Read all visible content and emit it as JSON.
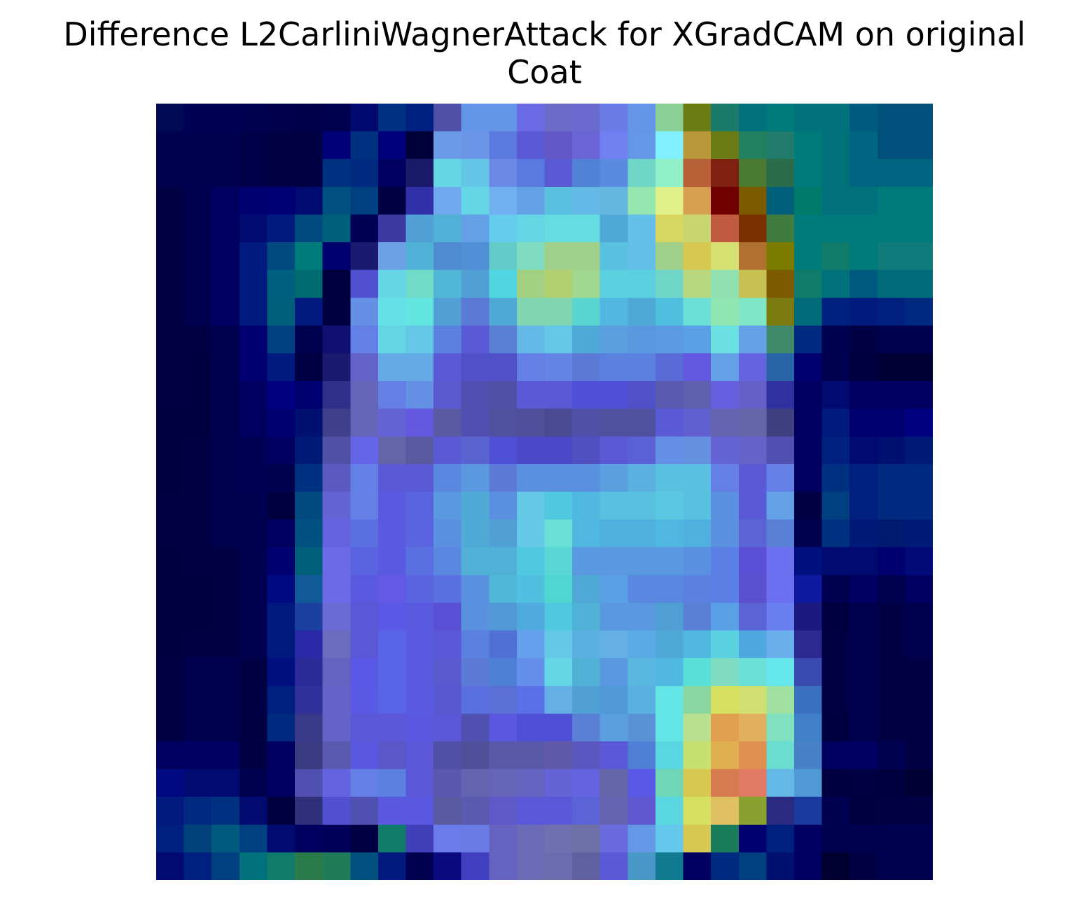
{
  "chart_data": {
    "type": "heatmap",
    "title_lines": [
      "Difference L2CarliniWagnerAttack for XGradCAM on original",
      "Coat"
    ],
    "xlabel": "",
    "ylabel": "",
    "axes_visible": false,
    "grid": false,
    "rows": 28,
    "cols": 28,
    "colormap": "jet blended over grayscale image",
    "pixel_colors": [
      [
        "#000a55",
        "#000055",
        "#000055",
        "#000050",
        "#00004d",
        "#00004a",
        "#000050",
        "#000a6e",
        "#003080",
        "#002080",
        "#5050a8",
        "#6495e6",
        "#6495e6",
        "#6b6be6",
        "#6b6bc8",
        "#6b6bcf",
        "#6b7be6",
        "#6495e6",
        "#8acf96",
        "#6b7b16",
        "#1a7b6b",
        "#00707b",
        "#007b7b",
        "#00707b",
        "#00707b",
        "#005a80",
        "#00507b",
        "#00507b"
      ],
      [
        "#000050",
        "#000050",
        "#000050",
        "#00004a",
        "#000045",
        "#000045",
        "#000078",
        "#003080",
        "#00007b",
        "#00003a",
        "#6b9ae6",
        "#6b95e6",
        "#5a7ae0",
        "#5a5ad6",
        "#6458c8",
        "#6b64d6",
        "#7080f0",
        "#6498e6",
        "#80f0ff",
        "#b89838",
        "#6b7b16",
        "#208060",
        "#207b6b",
        "#007b7b",
        "#00707b",
        "#006580",
        "#00507b",
        "#00507b"
      ],
      [
        "#000050",
        "#000050",
        "#000050",
        "#00004a",
        "#000045",
        "#000045",
        "#003080",
        "#002a80",
        "#000060",
        "#1a1a6b",
        "#64d6e6",
        "#64c6e6",
        "#6b8ae6",
        "#5a7ae0",
        "#5a5ad6",
        "#5082d6",
        "#5a8ae0",
        "#70d6c8",
        "#90f0c8",
        "#b86038",
        "#802010",
        "#4a7b30",
        "#2a6b4a",
        "#007b7b",
        "#00707b",
        "#006580",
        "#006580",
        "#006580"
      ],
      [
        "#000045",
        "#000050",
        "#000060",
        "#000070",
        "#000075",
        "#000a70",
        "#005080",
        "#004080",
        "#000045",
        "#3030a8",
        "#70a8f0",
        "#64d6e6",
        "#70b0f0",
        "#64a0e6",
        "#5ac0e0",
        "#64b8e6",
        "#64b8e0",
        "#96e6b0",
        "#e0f08a",
        "#d6a050",
        "#700000",
        "#7b5a00",
        "#00607b",
        "#007b6b",
        "#00707b",
        "#00707b",
        "#007b7b",
        "#007b7b"
      ],
      [
        "#000045",
        "#000050",
        "#000060",
        "#000a70",
        "#001a80",
        "#004a80",
        "#00607b",
        "#000055",
        "#3a3aa0",
        "#50a0d6",
        "#50b0d6",
        "#64a0e6",
        "#64ccec",
        "#64d6e6",
        "#64dce0",
        "#64dce0",
        "#50a8d6",
        "#64c0e6",
        "#d6d660",
        "#c8d670",
        "#c05a40",
        "#7b3000",
        "#407b40",
        "#007b7b",
        "#007b7b",
        "#007b7b",
        "#007b7b",
        "#007b7b"
      ],
      [
        "#000045",
        "#000050",
        "#000060",
        "#001a80",
        "#004a80",
        "#007b7b",
        "#000070",
        "#1a1a70",
        "#6ba0e6",
        "#50b0d6",
        "#508ad0",
        "#5090d6",
        "#64ccc8",
        "#80dcc0",
        "#a0d08a",
        "#a0d08a",
        "#5ac0e0",
        "#64c0e6",
        "#a0d08a",
        "#d6c850",
        "#d6e070",
        "#b07030",
        "#7b7b00",
        "#007b7b",
        "#107b6b",
        "#007b7b",
        "#107b7b",
        "#107b7b"
      ],
      [
        "#000045",
        "#000050",
        "#000060",
        "#001a80",
        "#006080",
        "#006b70",
        "#000040",
        "#5050d0",
        "#64d6e6",
        "#70dcc8",
        "#50b8d6",
        "#50a0d6",
        "#50d6e0",
        "#a0d080",
        "#b0d070",
        "#a0d890",
        "#5ad0e0",
        "#5ad0e0",
        "#70d6c8",
        "#b8d880",
        "#90e0b0",
        "#c8c050",
        "#7b5a00",
        "#107b6b",
        "#00707b",
        "#005a80",
        "#006b7b",
        "#006b7b"
      ],
      [
        "#000045",
        "#000050",
        "#000060",
        "#001a80",
        "#00607b",
        "#001a80",
        "#000040",
        "#6490e6",
        "#64e0e6",
        "#64e6e0",
        "#50a0d6",
        "#5a7ad6",
        "#50a8d6",
        "#80d6b0",
        "#80d6b0",
        "#5ad6d0",
        "#50b8e0",
        "#50a8d6",
        "#50c0e0",
        "#6be0d6",
        "#90e6b0",
        "#80e6c8",
        "#7b7b10",
        "#006b7b",
        "#002080",
        "#001a80",
        "#002080",
        "#002a80"
      ],
      [
        "#000045",
        "#000045",
        "#000050",
        "#000070",
        "#004080",
        "#000050",
        "#101070",
        "#6480e6",
        "#64d6e6",
        "#64c8e6",
        "#5a80e0",
        "#5a5ad6",
        "#5a80d6",
        "#64b8e6",
        "#64c8e6",
        "#50a8d6",
        "#5aa0e0",
        "#5a98e0",
        "#5a9ae0",
        "#5aa0e6",
        "#6be0e0",
        "#64a0e6",
        "#408a6b",
        "#002a80",
        "#000050",
        "#000045",
        "#000050",
        "#000050"
      ],
      [
        "#000045",
        "#000040",
        "#000050",
        "#000070",
        "#001a80",
        "#000045",
        "#1a1a70",
        "#6464c8",
        "#64aae6",
        "#64aae6",
        "#5a5ad6",
        "#5050c8",
        "#5050c8",
        "#6480e6",
        "#6484e6",
        "#5a7ad6",
        "#5a80e0",
        "#5a80e0",
        "#5a6ad6",
        "#6458e0",
        "#64a0e6",
        "#6464e0",
        "#2a64a8",
        "#000070",
        "#000050",
        "#000040",
        "#000035",
        "#000035"
      ],
      [
        "#000045",
        "#000040",
        "#000050",
        "#000060",
        "#000080",
        "#000070",
        "#30308a",
        "#6464b8",
        "#6480e6",
        "#6490e6",
        "#5a5ad0",
        "#5050b0",
        "#5050a8",
        "#5a5ad6",
        "#5a5ad6",
        "#5050d6",
        "#5050d6",
        "#5050c8",
        "#5a5ab0",
        "#6060b0",
        "#6460e0",
        "#6460c8",
        "#3030a0",
        "#000060",
        "#000a70",
        "#000060",
        "#000060",
        "#000060"
      ],
      [
        "#000040",
        "#000040",
        "#000050",
        "#000060",
        "#000070",
        "#001070",
        "#40408a",
        "#6464b8",
        "#6464d6",
        "#6458e0",
        "#5a5aa0",
        "#5050b0",
        "#5050a0",
        "#50509a",
        "#4a4a90",
        "#5050a8",
        "#5050a0",
        "#5050a0",
        "#5a5ad6",
        "#6060d0",
        "#6464b0",
        "#6464a8",
        "#404080",
        "#000060",
        "#001a80",
        "#000070",
        "#000070",
        "#000080"
      ],
      [
        "#000040",
        "#000045",
        "#000050",
        "#000055",
        "#000060",
        "#001a78",
        "#5050a8",
        "#6464e6",
        "#6464a8",
        "#5a5aa0",
        "#5a5ad6",
        "#5a64d0",
        "#5050d6",
        "#4a4ac8",
        "#4a4ac8",
        "#5050c0",
        "#5a5ad6",
        "#5a60d6",
        "#6490e6",
        "#6490e0",
        "#6464d6",
        "#6464c8",
        "#5050b0",
        "#000060",
        "#002080",
        "#000a70",
        "#001070",
        "#001a78"
      ],
      [
        "#000040",
        "#000045",
        "#000050",
        "#000055",
        "#000050",
        "#003080",
        "#5a5ac0",
        "#6480e6",
        "#5a5ad6",
        "#5a5ad6",
        "#5a88e0",
        "#5a98e0",
        "#5a7ad6",
        "#5a90e0",
        "#5a90e0",
        "#5a90e0",
        "#5aa0e0",
        "#5ab0e0",
        "#5ac0e0",
        "#5ac0e0",
        "#6480e6",
        "#5a5ad6",
        "#6480e6",
        "#000060",
        "#003080",
        "#002080",
        "#002a80",
        "#002a80"
      ],
      [
        "#000045",
        "#000045",
        "#000050",
        "#000050",
        "#000040",
        "#004a80",
        "#6464d6",
        "#6480e6",
        "#5a5ae0",
        "#5a64e0",
        "#5a98e0",
        "#50aad6",
        "#5a90e0",
        "#64c8e6",
        "#50c8e0",
        "#50b8e0",
        "#5ac0e0",
        "#5ac0e0",
        "#5ac8e0",
        "#5ac0e0",
        "#5a90e0",
        "#5a5ad6",
        "#64a0e6",
        "#000045",
        "#004080",
        "#002080",
        "#002a80",
        "#002a80"
      ],
      [
        "#000045",
        "#000045",
        "#000050",
        "#000050",
        "#000060",
        "#005080",
        "#6464e0",
        "#5a70e0",
        "#5a5ae0",
        "#5a64e0",
        "#5a90e0",
        "#50aad6",
        "#50a0d6",
        "#64c8e6",
        "#6be0d6",
        "#50b8e0",
        "#50b0e0",
        "#50b0e0",
        "#50b8e0",
        "#50b0e0",
        "#5a90e0",
        "#5a64d6",
        "#5a80d6",
        "#000050",
        "#003080",
        "#001a78",
        "#001a70",
        "#001a78"
      ],
      [
        "#000040",
        "#000045",
        "#000045",
        "#000050",
        "#000070",
        "#00607b",
        "#6b6be6",
        "#5a64e0",
        "#5a5ae0",
        "#5a70e0",
        "#5a88e0",
        "#50b0d6",
        "#50b0d6",
        "#50c8e0",
        "#5ad6d6",
        "#5a98e0",
        "#5a98e0",
        "#5a98e0",
        "#5a98e0",
        "#5a90e0",
        "#5a80e6",
        "#5a50d6",
        "#6b70f0",
        "#001080",
        "#000a70",
        "#000a70",
        "#000070",
        "#000a78"
      ],
      [
        "#000040",
        "#000040",
        "#000045",
        "#000050",
        "#000a80",
        "#105a9a",
        "#6b6be6",
        "#5a5ae0",
        "#6458e6",
        "#5a64e0",
        "#5a70e0",
        "#5a90e0",
        "#50b8d6",
        "#50c0e0",
        "#50d6d0",
        "#50a8d6",
        "#5aa0e6",
        "#5a88e0",
        "#5a88e0",
        "#5a80e0",
        "#5a80e6",
        "#5a50d0",
        "#6b70f0",
        "#101aa0",
        "#000050",
        "#000060",
        "#000050",
        "#000060"
      ],
      [
        "#000040",
        "#000040",
        "#000045",
        "#000050",
        "#001a80",
        "#1a40a0",
        "#6b6bd6",
        "#5a58d6",
        "#5a58e6",
        "#5a5ae0",
        "#5a50d6",
        "#5a90e0",
        "#5098d6",
        "#50aae0",
        "#50c8e0",
        "#50b0d6",
        "#5a98e0",
        "#5a98e0",
        "#50a0d6",
        "#5a80d6",
        "#5aa0e6",
        "#5a64d6",
        "#6b80f0",
        "#1a1a80",
        "#000040",
        "#000050",
        "#000045",
        "#000050"
      ],
      [
        "#000040",
        "#000045",
        "#000045",
        "#000050",
        "#001a80",
        "#2a2aa8",
        "#6b6bc0",
        "#5a58d6",
        "#5a64e6",
        "#5a5ae0",
        "#5a58d6",
        "#5a80e0",
        "#5070d6",
        "#64a0ec",
        "#64c8e6",
        "#5ab0e0",
        "#64b0e6",
        "#5aaae6",
        "#50a8d6",
        "#50b8e0",
        "#5ad0e0",
        "#50a8e0",
        "#6bb0ec",
        "#2a2a90",
        "#000045",
        "#000050",
        "#000045",
        "#000050"
      ],
      [
        "#000045",
        "#000050",
        "#000050",
        "#000045",
        "#001080",
        "#2a2a98",
        "#6464c0",
        "#5a58e6",
        "#5a64e6",
        "#5a5ae0",
        "#5a5ad0",
        "#5a7ad6",
        "#5080d6",
        "#6490ec",
        "#64d6e6",
        "#50b0d6",
        "#5a98e0",
        "#5ab8e0",
        "#50b8e0",
        "#5ae0d6",
        "#80dcc0",
        "#6be0d6",
        "#64e6ec",
        "#3a4ab0",
        "#000045",
        "#000050",
        "#000045",
        "#000045"
      ],
      [
        "#000045",
        "#000050",
        "#000050",
        "#000045",
        "#002080",
        "#30309a",
        "#6464c8",
        "#5a5ae6",
        "#5a64e6",
        "#5a5ae0",
        "#5a58d0",
        "#5a70e0",
        "#5a70d6",
        "#5a70e6",
        "#64b0e6",
        "#50a0d6",
        "#5098d6",
        "#5ab0e0",
        "#64e6e6",
        "#8ad6a0",
        "#d6e060",
        "#d0e070",
        "#a0e0a0",
        "#3a70c0",
        "#000045",
        "#000050",
        "#000045",
        "#000045"
      ],
      [
        "#000045",
        "#000050",
        "#000050",
        "#000045",
        "#002a80",
        "#3a3a8a",
        "#6464c8",
        "#5a58d6",
        "#5a58d6",
        "#5a58e0",
        "#5a58d6",
        "#5050b0",
        "#5a58e0",
        "#5050d6",
        "#5050d6",
        "#5a80d6",
        "#5aa0e0",
        "#5a90d6",
        "#64e6e6",
        "#b8e090",
        "#e0a050",
        "#e0b060",
        "#80e0c0",
        "#4080c8",
        "#000040",
        "#000050",
        "#000045",
        "#000045"
      ],
      [
        "#000060",
        "#000060",
        "#000060",
        "#000045",
        "#000060",
        "#3a3a80",
        "#5a5ab0",
        "#5a58e0",
        "#5a58c8",
        "#5a58d6",
        "#5050a8",
        "#50509a",
        "#5a58a8",
        "#5a58a8",
        "#6058a8",
        "#5a58c0",
        "#5a58d6",
        "#5080d6",
        "#5ad6e0",
        "#c8e070",
        "#e0b050",
        "#e09050",
        "#6bdcd0",
        "#4a80c8",
        "#000060",
        "#000060",
        "#000050",
        "#000045"
      ],
      [
        "#000a80",
        "#000a70",
        "#000a70",
        "#000050",
        "#000060",
        "#5050b0",
        "#6464e0",
        "#6480e6",
        "#5a80e0",
        "#5a58d6",
        "#5a58b0",
        "#6464b0",
        "#6464b8",
        "#6464c0",
        "#6464d6",
        "#6464e0",
        "#6464a8",
        "#5a58e6",
        "#70d6b8",
        "#d6c850",
        "#d67a50",
        "#e07a64",
        "#64b8e6",
        "#5098d6",
        "#000040",
        "#000045",
        "#000040",
        "#000035"
      ],
      [
        "#001a80",
        "#002a80",
        "#003080",
        "#000a70",
        "#000040",
        "#30307a",
        "#5050d0",
        "#5050b0",
        "#5a58e0",
        "#5a58e0",
        "#5a5aa0",
        "#5a5ab0",
        "#6058c8",
        "#5a58d6",
        "#5a58d6",
        "#5a64d6",
        "#6464b0",
        "#6058d0",
        "#5ad6e0",
        "#d6e060",
        "#e0c060",
        "#8aa030",
        "#2a2a80",
        "#1a3aa0",
        "#000050",
        "#000040",
        "#000045",
        "#000045"
      ],
      [
        "#002080",
        "#00407b",
        "#005a80",
        "#004080",
        "#000a70",
        "#000060",
        "#00005a",
        "#000045",
        "#107b6b",
        "#4040b8",
        "#6b7bec",
        "#6b7be6",
        "#6464c0",
        "#6b6bb8",
        "#7070b0",
        "#7070a8",
        "#6b6be0",
        "#6498e6",
        "#64c8ec",
        "#d6c850",
        "#1a7b5a",
        "#000070",
        "#002080",
        "#000060",
        "#000050",
        "#000050",
        "#000050",
        "#000050"
      ],
      [
        "#000a70",
        "#002080",
        "#004080",
        "#00707b",
        "#107b6b",
        "#2a7b4a",
        "#207b5a",
        "#005080",
        "#001a80",
        "#000050",
        "#0a0a80",
        "#4040c0",
        "#6464c0",
        "#6b6bb8",
        "#6b6bb0",
        "#6060a0",
        "#5a5ad6",
        "#4898c8",
        "#107b90",
        "#000060",
        "#002a80",
        "#004080",
        "#001070",
        "#000060",
        "#000030",
        "#000045",
        "#000050",
        "#000050"
      ]
    ]
  }
}
